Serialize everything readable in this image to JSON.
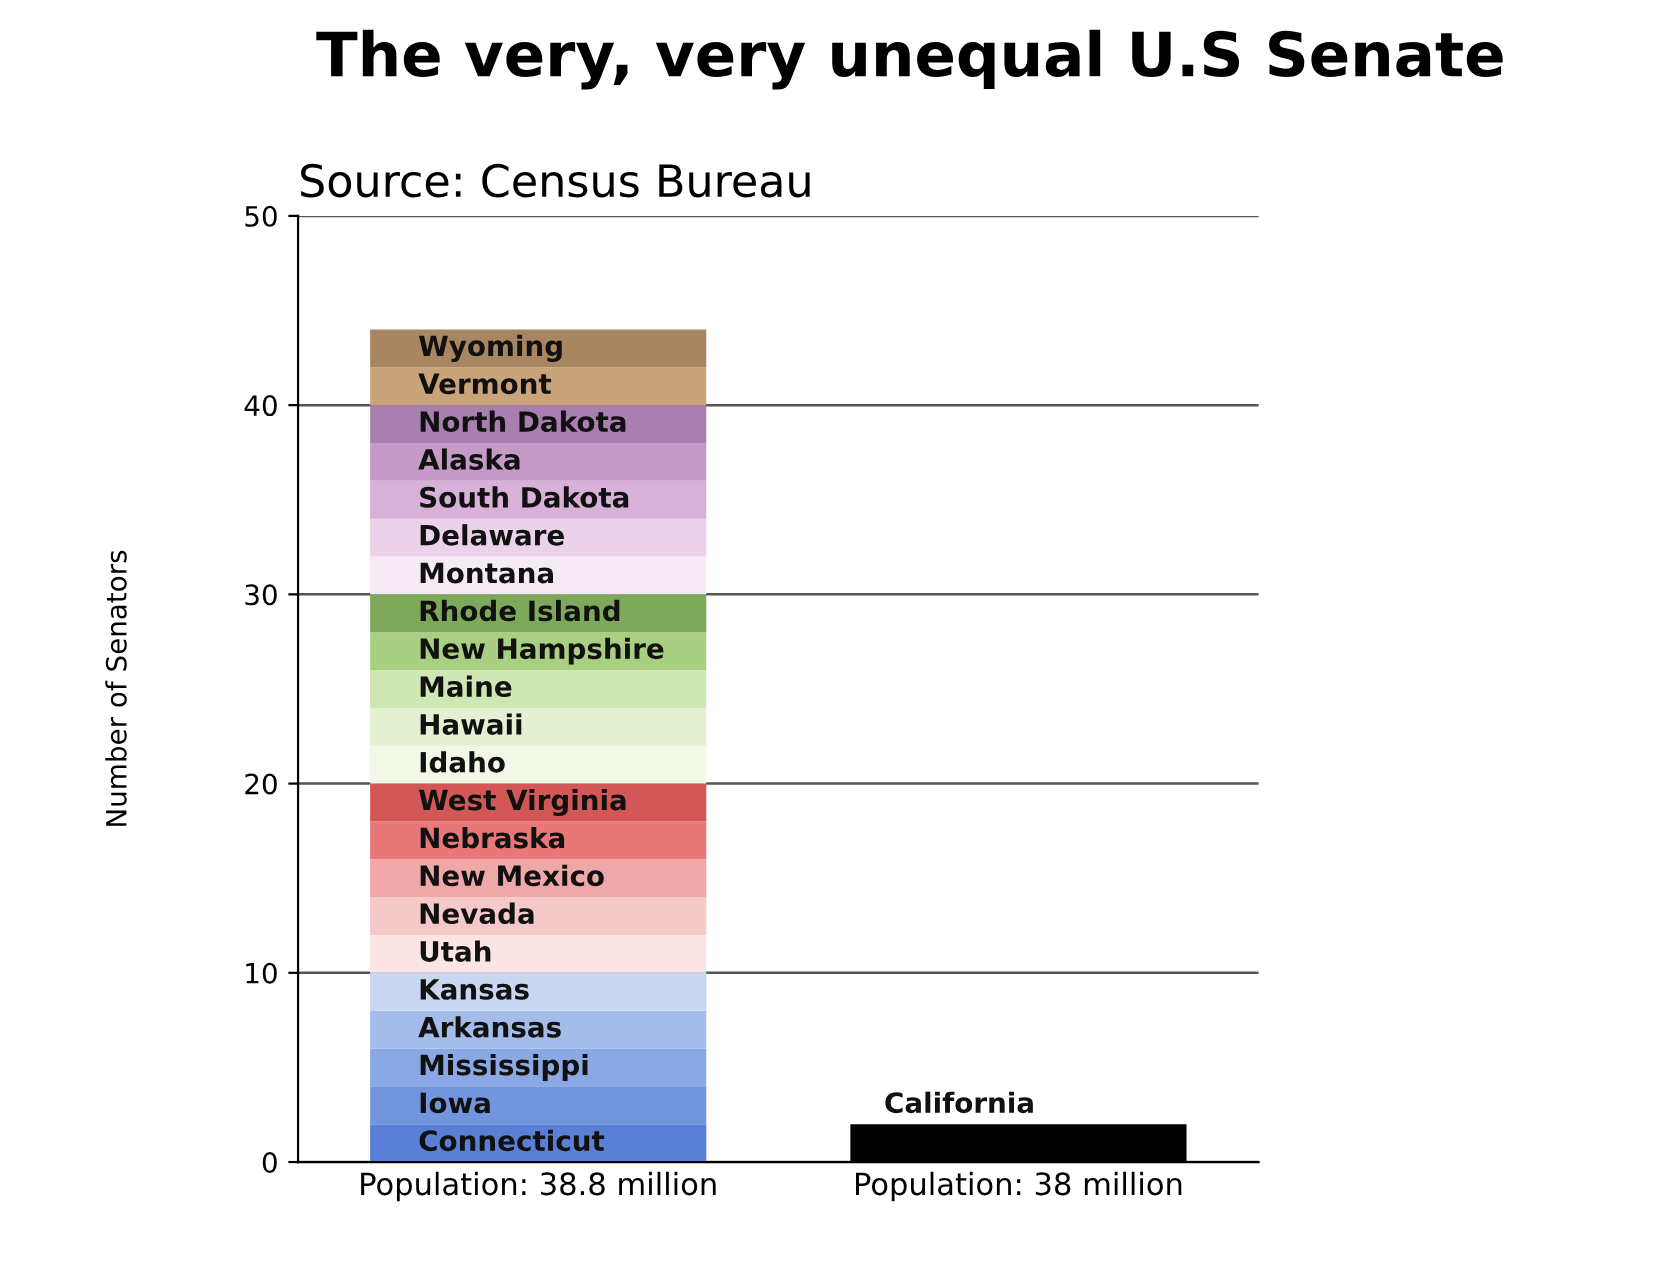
{
  "chart_data": {
    "type": "bar",
    "stacked": true,
    "title": "The very, very unequal U.S Senate",
    "subtitle": "Source: Census Bureau",
    "ylabel": "Number of Senators",
    "categories": [
      "Population: 38.8 million",
      "Population: 38 million"
    ],
    "ylim": [
      0,
      50
    ],
    "yticks": [
      0,
      10,
      20,
      30,
      40,
      50
    ],
    "grid": "y",
    "legend": false,
    "series": [
      {
        "name": "Connecticut",
        "color": "#5b7fd6",
        "values": [
          2,
          null
        ]
      },
      {
        "name": "Iowa",
        "color": "#7295dd",
        "values": [
          2,
          null
        ]
      },
      {
        "name": "Mississippi",
        "color": "#8aa8e3",
        "values": [
          2,
          null
        ]
      },
      {
        "name": "Arkansas",
        "color": "#a4bcea",
        "values": [
          2,
          null
        ]
      },
      {
        "name": "Kansas",
        "color": "#c8d6f2",
        "values": [
          2,
          null
        ]
      },
      {
        "name": "Utah",
        "color": "#fbe4e4",
        "values": [
          2,
          null
        ]
      },
      {
        "name": "Nevada",
        "color": "#f6c9c9",
        "values": [
          2,
          null
        ]
      },
      {
        "name": "New Mexico",
        "color": "#f0a7a7",
        "values": [
          2,
          null
        ]
      },
      {
        "name": "Nebraska",
        "color": "#e87878",
        "values": [
          2,
          null
        ]
      },
      {
        "name": "West Virginia",
        "color": "#d45757",
        "values": [
          2,
          null
        ]
      },
      {
        "name": "Idaho",
        "color": "#f1f8e8",
        "values": [
          2,
          null
        ]
      },
      {
        "name": "Hawaii",
        "color": "#e3f0d2",
        "values": [
          2,
          null
        ]
      },
      {
        "name": "Maine",
        "color": "#cfe6b5",
        "values": [
          2,
          null
        ]
      },
      {
        "name": "New Hampshire",
        "color": "#a9cf82",
        "values": [
          2,
          null
        ]
      },
      {
        "name": "Rhode Island",
        "color": "#7ea95a",
        "values": [
          2,
          null
        ]
      },
      {
        "name": "Montana",
        "color": "#f6eaf4",
        "values": [
          2,
          null
        ]
      },
      {
        "name": "Delaware",
        "color": "#ebd2ea",
        "values": [
          2,
          null
        ]
      },
      {
        "name": "South Dakota",
        "color": "#d8b1d8",
        "values": [
          2,
          null
        ]
      },
      {
        "name": "Alaska",
        "color": "#c59ac7",
        "values": [
          2,
          null
        ]
      },
      {
        "name": "North Dakota",
        "color": "#a87fae",
        "values": [
          2,
          null
        ]
      },
      {
        "name": "Vermont",
        "color": "#c9a47a",
        "values": [
          2,
          null
        ]
      },
      {
        "name": "Wyoming",
        "color": "#a98662",
        "values": [
          2,
          null
        ]
      },
      {
        "name": "California",
        "color": "#000000",
        "values": [
          null,
          2
        ]
      }
    ]
  }
}
